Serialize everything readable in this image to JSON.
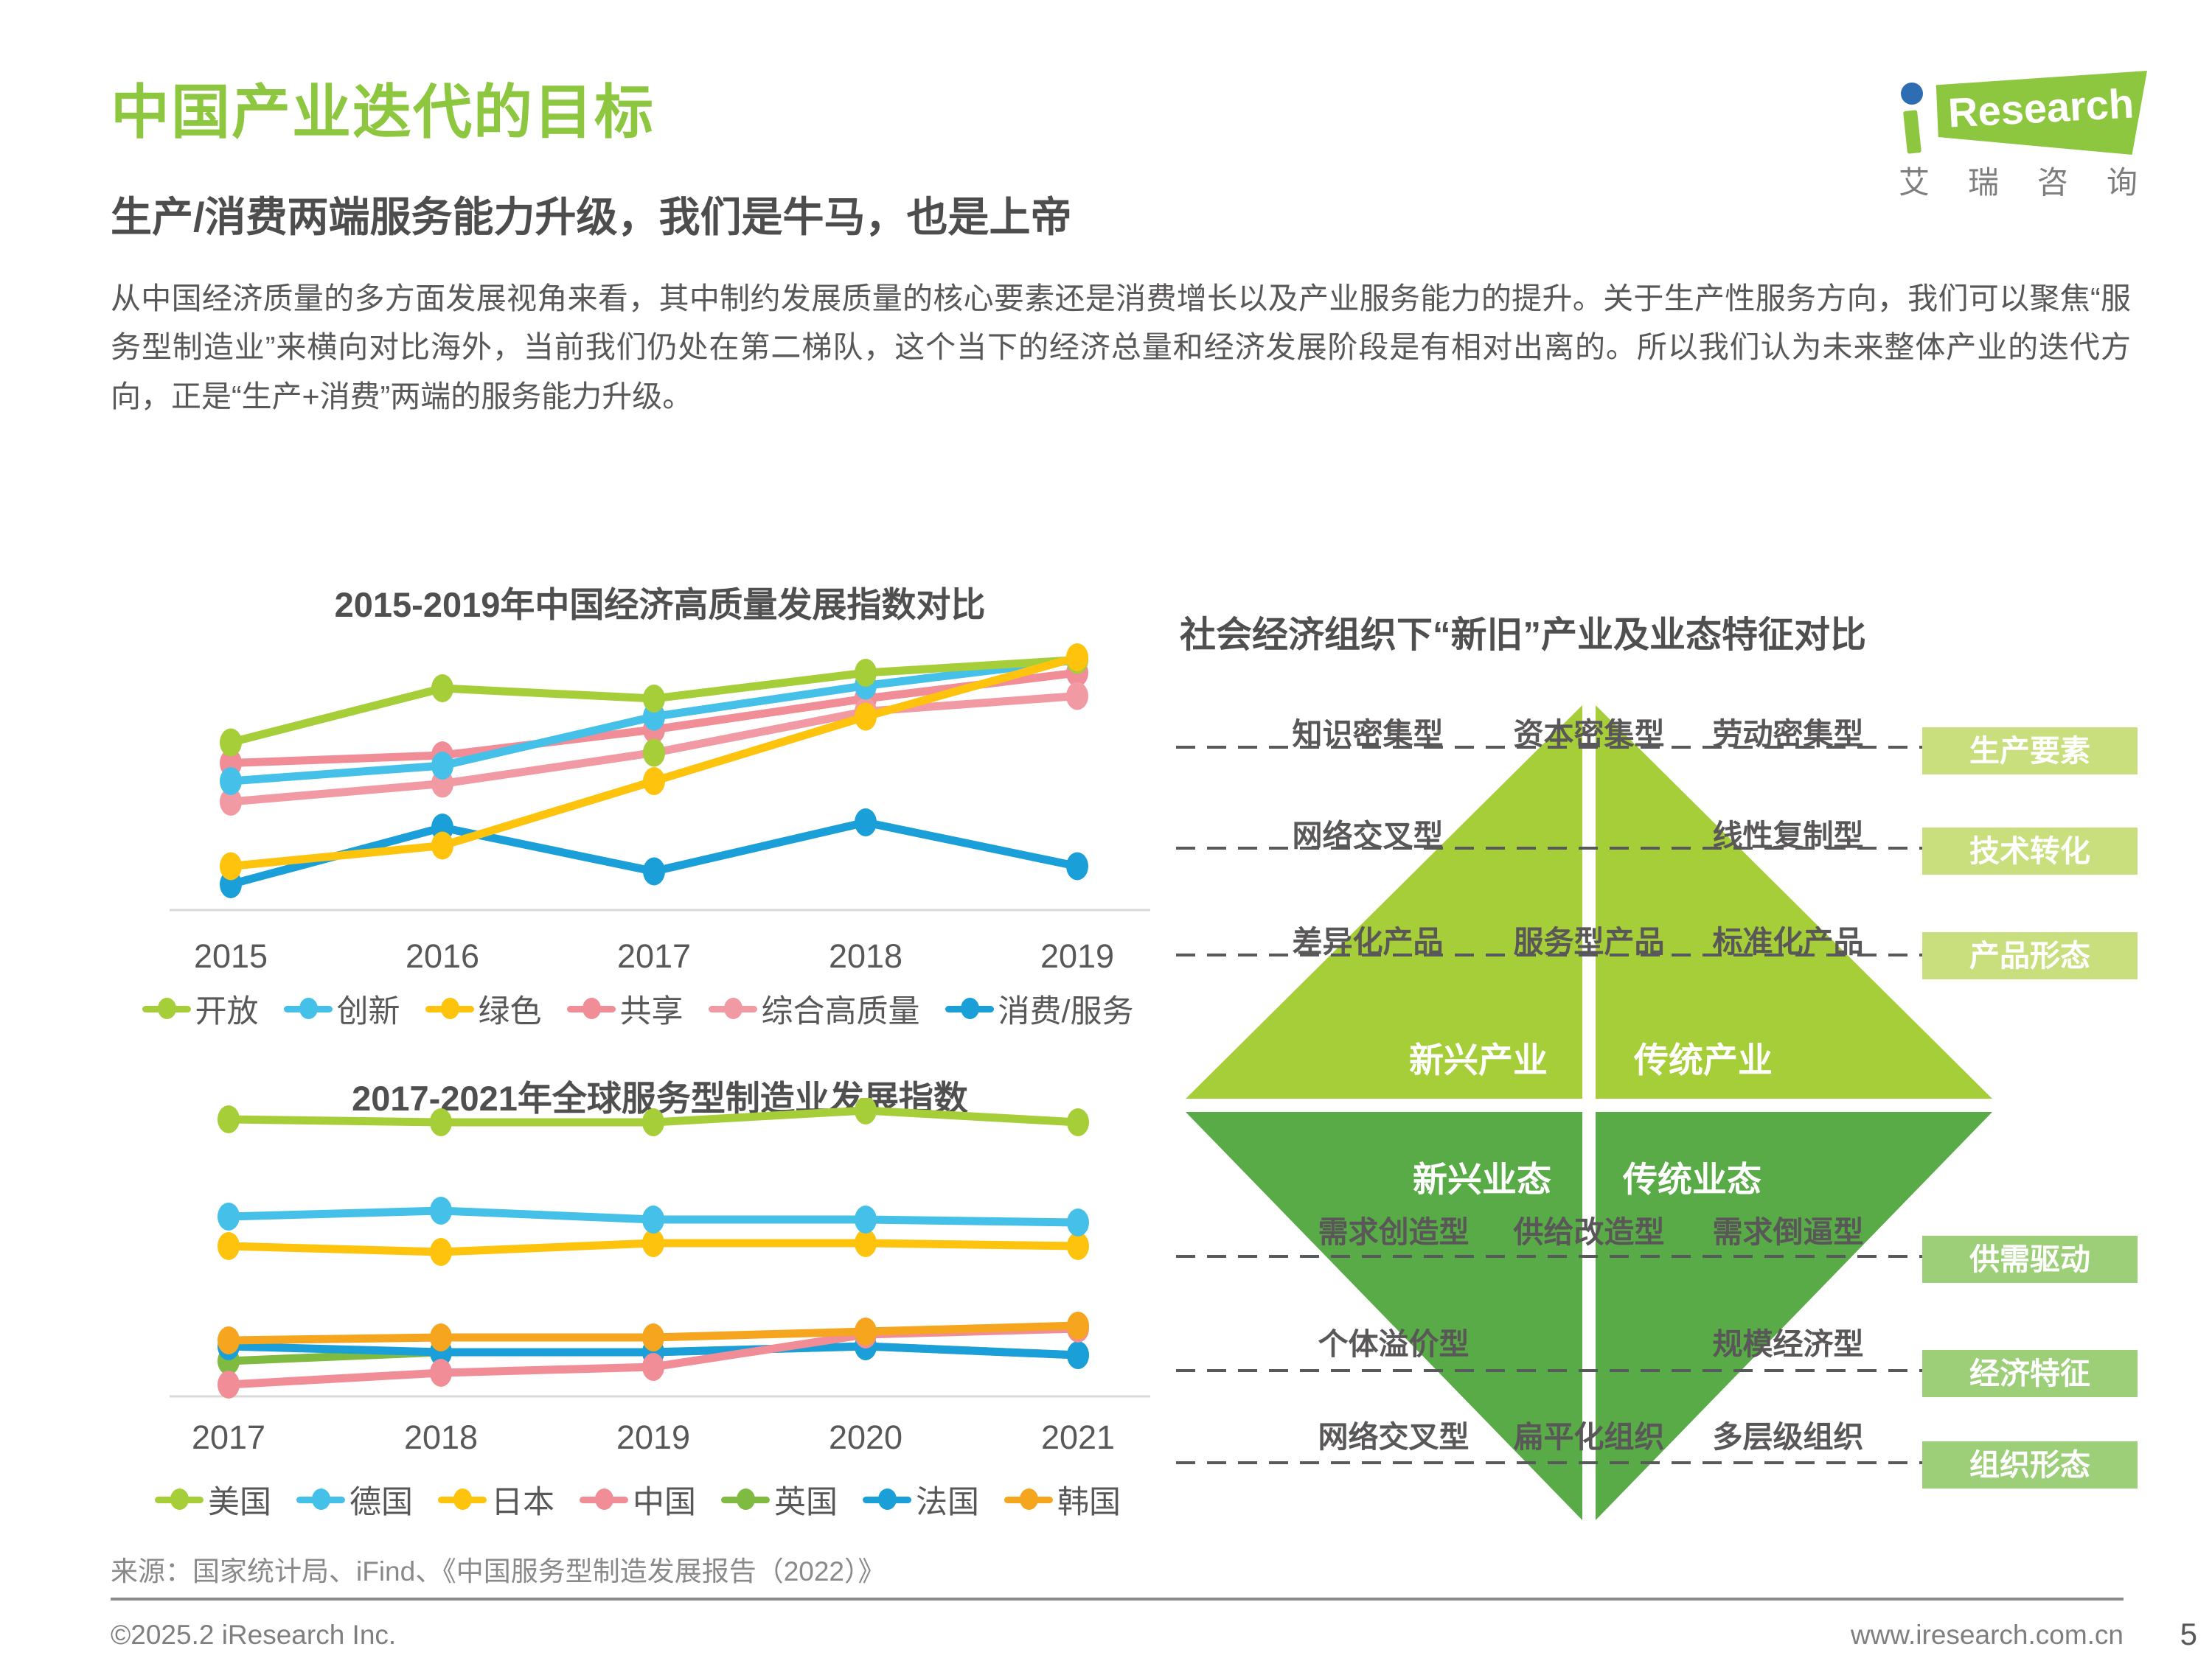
{
  "page": {
    "title": "中国产业迭代的目标",
    "subtitle": "生产/消费两端服务能力升级，我们是牛马，也是上帝",
    "body": "从中国经济质量的多方面发展视角来看，其中制约发展质量的核心要素还是消费增长以及产业服务能力的提升。关于生产性服务方向，我们可以聚焦“服务型制造业”来横向对比海外，当前我们仍处在第二梯队，这个当下的经济总量和经济发展阶段是有相对出离的。所以我们认为未来整体产业的迭代方向，正是“生产+消费”两端的服务能力升级。",
    "source": "来源：国家统计局、iFind、《中国服务型制造发展报告（2022）》",
    "footer_left": "©2025.2 iResearch Inc.",
    "footer_right": "www.iresearch.com.cn",
    "page_number": "5",
    "logo": {
      "brand": "Research",
      "cn": "艾瑞咨询"
    }
  },
  "chart_data": [
    {
      "type": "line",
      "title": "2015-2019年中国经济高质量发展指数对比",
      "x": [
        "2015",
        "2016",
        "2017",
        "2018",
        "2019"
      ],
      "ylim": [
        0,
        10
      ],
      "grid": false,
      "legend_position": "bottom",
      "series": [
        {
          "name": "开放",
          "color": "#a6ce39",
          "values": [
            6.5,
            8.6,
            8.2,
            9.2,
            9.7
          ]
        },
        {
          "name": "创新",
          "color": "#45c1e9",
          "values": [
            5.0,
            5.6,
            7.5,
            8.7,
            9.7
          ]
        },
        {
          "name": "绿色",
          "color": "#fdc30d",
          "values": [
            1.7,
            2.5,
            5.0,
            7.5,
            9.8
          ]
        },
        {
          "name": "共享",
          "color": "#f08d96",
          "values": [
            5.7,
            6.0,
            7.0,
            8.2,
            9.2
          ]
        },
        {
          "name": "综合高质量",
          "color": "#f19aa3",
          "values": [
            4.2,
            4.9,
            6.1,
            7.7,
            8.3
          ]
        },
        {
          "name": "消费/服务",
          "color": "#1b9fd8",
          "values": [
            1.0,
            3.2,
            1.5,
            3.4,
            1.7
          ]
        }
      ],
      "draw_order": [
        "共享",
        "综合高质量",
        "创新",
        "开放",
        "消费/服务",
        "绿色"
      ],
      "extra_marker": {
        "x": "2017",
        "value": 6.1,
        "color": "#a6ce39"
      }
    },
    {
      "type": "line",
      "title": "2017-2021年全球服务型制造业发展指数",
      "x": [
        "2017",
        "2018",
        "2019",
        "2020",
        "2021"
      ],
      "ylim": [
        0,
        10
      ],
      "grid": false,
      "legend_position": "bottom",
      "series": [
        {
          "name": "美国",
          "color": "#a6ce39",
          "values": [
            9.4,
            9.3,
            9.3,
            9.7,
            9.3
          ]
        },
        {
          "name": "德国",
          "color": "#45c1e9",
          "values": [
            6.1,
            6.3,
            6.0,
            6.0,
            5.9
          ]
        },
        {
          "name": "日本",
          "color": "#fdc30d",
          "values": [
            5.1,
            4.9,
            5.2,
            5.2,
            5.1
          ]
        },
        {
          "name": "中国",
          "color": "#f08d96",
          "values": [
            0.4,
            0.8,
            1.0,
            2.1,
            2.3
          ]
        },
        {
          "name": "英国",
          "color": "#7ebb40",
          "values": [
            1.2,
            1.5,
            1.5,
            1.7,
            1.4
          ]
        },
        {
          "name": "法国",
          "color": "#1b9fd8",
          "values": [
            1.7,
            1.5,
            1.5,
            1.7,
            1.4
          ]
        },
        {
          "name": "韩国",
          "color": "#f6a51f",
          "values": [
            1.9,
            2.0,
            2.0,
            2.2,
            2.4
          ]
        }
      ],
      "draw_order": [
        "英国",
        "法国",
        "中国",
        "韩国",
        "日本",
        "德国",
        "美国"
      ]
    }
  ],
  "diagram": {
    "title": "社会经济组织下“新旧”产业及业态特征对比",
    "top_triangle": {
      "color": "#a6ce39",
      "left_label": "新兴产业",
      "right_label": "传统产业",
      "rows": [
        {
          "left": "知识密集型",
          "center": "资本密集型",
          "right": "劳动密集型",
          "tag": "生产要素"
        },
        {
          "left": "网络交叉型",
          "center": "",
          "right": "线性复制型",
          "tag": "技术转化"
        },
        {
          "left": "差异化产品",
          "center": "服务型产品",
          "right": "标准化产品",
          "tag": "产品形态"
        }
      ]
    },
    "bottom_triangle": {
      "color": "#58ab46",
      "left_label": "新兴业态",
      "right_label": "传统业态",
      "rows": [
        {
          "left": "需求创造型",
          "center": "供给改造型",
          "right": "需求倒逼型",
          "tag": "供需驱动"
        },
        {
          "left": "个体溢价型",
          "center": "",
          "right": "规模经济型",
          "tag": "经济特征"
        },
        {
          "left": "网络交叉型",
          "center": "扁平化组织",
          "right": "多层级组织",
          "tag": "组织形态"
        }
      ]
    },
    "tag_colors": {
      "top": "#c9df7d",
      "bottom": "#9ccf78"
    },
    "dash_color": "#58595b"
  }
}
